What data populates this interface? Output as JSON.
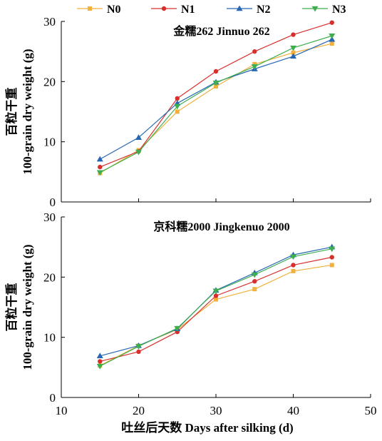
{
  "chart_data": {
    "type": "line",
    "x_label": "吐丝后天数 Days after silking (d)",
    "y_label_cn": "百粒干重",
    "y_label_en": "100-grain dry weight (g)",
    "xlim": [
      10,
      50
    ],
    "x_ticks": [
      10,
      20,
      30,
      40,
      50
    ],
    "legend": [
      {
        "name": "N0",
        "color": "#f2b03c",
        "marker": "square"
      },
      {
        "name": "N1",
        "color": "#d7302c",
        "marker": "circle"
      },
      {
        "name": "N2",
        "color": "#2566b5",
        "marker": "triangle-up"
      },
      {
        "name": "N3",
        "color": "#3fae4f",
        "marker": "triangle-down"
      }
    ],
    "panels": [
      {
        "title": "金糯262 Jinnuo 262",
        "ylim": [
          0,
          30
        ],
        "y_ticks": [
          0,
          10,
          20,
          30
        ],
        "x": [
          15,
          20,
          25,
          30,
          35,
          40,
          45
        ],
        "series": [
          {
            "name": "N0",
            "values": [
              4.8,
              8.6,
              15.0,
              19.2,
              22.9,
              24.8,
              26.3
            ]
          },
          {
            "name": "N1",
            "values": [
              5.8,
              8.4,
              17.2,
              21.7,
              25.0,
              27.8,
              29.8
            ]
          },
          {
            "name": "N2",
            "values": [
              7.1,
              10.7,
              16.4,
              19.9,
              22.1,
              24.2,
              27.0
            ]
          },
          {
            "name": "N3",
            "values": [
              4.9,
              8.3,
              15.9,
              19.8,
              22.5,
              25.6,
              27.6
            ]
          }
        ]
      },
      {
        "title": "京科糯2000 Jingkenuo 2000",
        "ylim": [
          0,
          30
        ],
        "y_ticks": [
          0,
          10,
          20,
          30
        ],
        "x": [
          15,
          20,
          25,
          30,
          35,
          40,
          45
        ],
        "series": [
          {
            "name": "N0",
            "values": [
              5.3,
              8.6,
              11.3,
              16.3,
              18.0,
              21.0,
              22.0
            ]
          },
          {
            "name": "N1",
            "values": [
              6.0,
              7.6,
              10.9,
              16.9,
              19.3,
              22.0,
              23.3
            ]
          },
          {
            "name": "N2",
            "values": [
              6.9,
              8.6,
              11.4,
              17.8,
              20.7,
              23.7,
              25.0
            ]
          },
          {
            "name": "N3",
            "values": [
              5.2,
              8.5,
              11.5,
              17.7,
              20.4,
              23.4,
              24.7
            ]
          }
        ]
      }
    ]
  }
}
